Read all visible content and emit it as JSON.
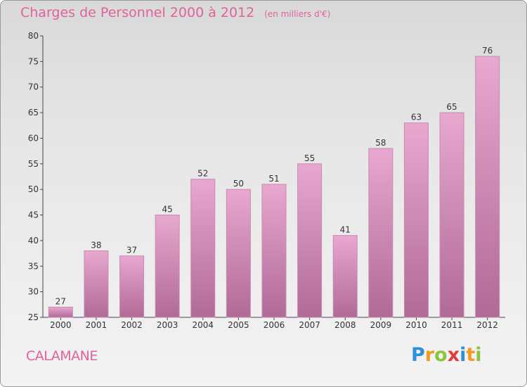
{
  "header": {
    "title": "Charges de Personnel 2000 à 2012",
    "subtitle": "(en milliers d'€)"
  },
  "footer": {
    "place": "CALAMANE",
    "logo_letters": [
      "P",
      "r",
      "o",
      "x",
      "i",
      "t",
      "i"
    ],
    "logo_colors": [
      "#2f8fd8",
      "#f39a1f",
      "#8fc23d",
      "#e23b3b",
      "#2f8fd8",
      "#f39a1f",
      "#8fc23d"
    ]
  },
  "colors": {
    "title": "#e0629b",
    "bar_top": "#e8a8cf",
    "bar_bottom": "#b06a96",
    "bar_border": "#c78bb2",
    "axis": "#444444"
  },
  "chart_data": {
    "type": "bar",
    "categories": [
      "2000",
      "2001",
      "2002",
      "2003",
      "2004",
      "2005",
      "2006",
      "2007",
      "2008",
      "2009",
      "2010",
      "2011",
      "2012"
    ],
    "values": [
      27,
      38,
      37,
      45,
      52,
      50,
      51,
      55,
      41,
      58,
      63,
      65,
      76
    ],
    "ylim": [
      25,
      80
    ],
    "yticks": [
      25,
      30,
      35,
      40,
      45,
      50,
      55,
      60,
      65,
      70,
      75,
      80
    ],
    "grid": false
  }
}
